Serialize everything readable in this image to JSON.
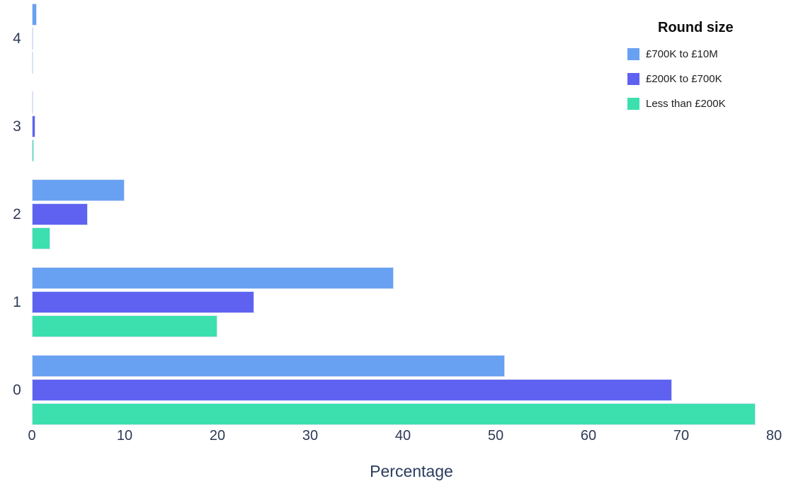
{
  "chart_data": {
    "type": "bar",
    "orientation": "horizontal",
    "categories": [
      "4",
      "3",
      "2",
      "1",
      "0"
    ],
    "series": [
      {
        "name": "£700K to £10M",
        "color": "#68A1F2",
        "values": [
          0.5,
          0.08,
          10,
          39,
          51
        ]
      },
      {
        "name": "£200K to £700K",
        "color": "#5F62F0",
        "values": [
          0.12,
          0.4,
          6,
          24,
          69
        ]
      },
      {
        "name": "Less than £200K",
        "color": "#3BE0AE",
        "values": [
          0.05,
          0.2,
          2,
          20,
          78
        ]
      }
    ],
    "title": "",
    "xlabel": "Percentage",
    "ylabel": "",
    "x_ticks": [
      0,
      10,
      20,
      30,
      40,
      50,
      60,
      70,
      80
    ],
    "xlim": [
      0,
      80
    ],
    "legend_title": "Round size",
    "legend_position": "top-right",
    "grid": false,
    "axis_text_color": "#2e3a55",
    "legend_text_color": "#1f1f1f"
  }
}
